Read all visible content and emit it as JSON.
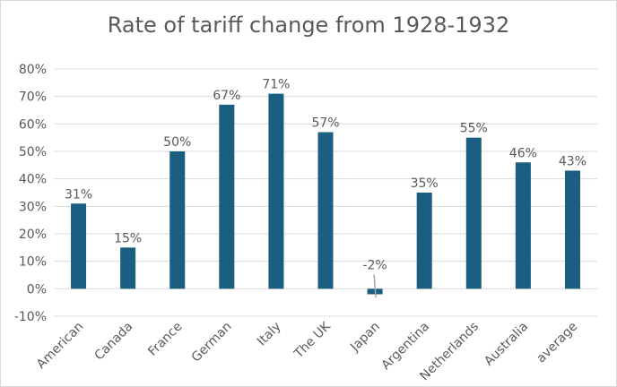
{
  "chart_data": {
    "type": "bar",
    "title": "Rate of tariff change from 1928-1932",
    "categories": [
      "American",
      "Canada",
      "France",
      "German",
      "Italy",
      "The UK",
      "Japan",
      "Argentina",
      "Netherlands",
      "Australia",
      "average"
    ],
    "values": [
      31,
      15,
      50,
      67,
      71,
      57,
      -2,
      35,
      55,
      46,
      43
    ],
    "data_labels": [
      "31%",
      "15%",
      "50%",
      "67%",
      "71%",
      "57%",
      "-2%",
      "35%",
      "55%",
      "46%",
      "43%"
    ],
    "xlabel": "",
    "ylabel": "",
    "ylim": [
      -10,
      80
    ],
    "yticks": [
      "-10%",
      "0%",
      "10%",
      "20%",
      "30%",
      "40%",
      "50%",
      "60%",
      "70%",
      "80%"
    ],
    "grid": true,
    "legend": "none",
    "bar_color": "#1a5e82"
  }
}
